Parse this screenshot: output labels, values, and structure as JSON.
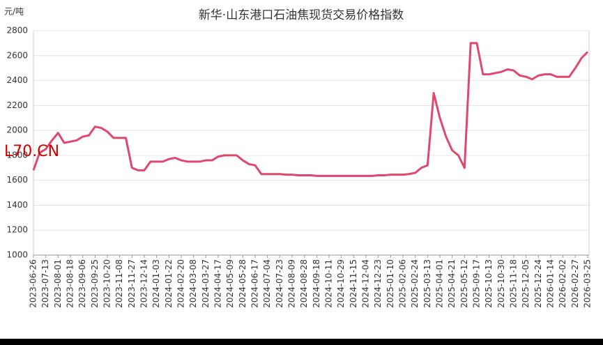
{
  "chart_data": {
    "type": "line",
    "title": "新华·山东港口石油焦现货交易价格指数",
    "y_unit": "元/吨",
    "watermark": "L70.CN",
    "categories": [
      "2023-06-26",
      null,
      "2023-07-13",
      null,
      "2023-08-01",
      null,
      "2023-08-18",
      null,
      "2023-09-06",
      null,
      "2023-09-25",
      null,
      "2023-10-20",
      null,
      "2023-11-08",
      null,
      "2023-11-27",
      null,
      "2023-12-14",
      null,
      "2024-01-03",
      null,
      "2024-01-22",
      null,
      "2024-02-20",
      null,
      "2024-03-08",
      null,
      "2024-03-27",
      null,
      "2024-04-17",
      null,
      "2024-05-09",
      null,
      "2024-05-28",
      null,
      "2024-06-17",
      null,
      "2024-07-04",
      null,
      "2024-07-23",
      null,
      "2024-08-09",
      null,
      "2024-08-28",
      null,
      "2024-09-18",
      null,
      "2024-10-11",
      null,
      "2024-10-29",
      null,
      "2024-11-15",
      null,
      "2024-12-04",
      null,
      "2024-12-23",
      null,
      "2025-01-10",
      null,
      "2025-02-06",
      null,
      "2025-02-24",
      null,
      "2025-03-13",
      null,
      "2025-04-01",
      null,
      "2025-04-21",
      null,
      "2025-05-12",
      null,
      "2025-09-17",
      null,
      "2025-10-13",
      null,
      "2025-10-30",
      null,
      "2025-11-18",
      null,
      "2025-12-05",
      null,
      "2025-12-24",
      null,
      "2026-01-14",
      null,
      "2026-02-02",
      null,
      "2026-02-27",
      null,
      "2026-03-25"
    ],
    "series": [
      {
        "color": "#e0476e",
        "values": [
          1680,
          1820,
          1850,
          1920,
          1980,
          1900,
          1910,
          1920,
          1950,
          1960,
          2030,
          2020,
          1990,
          1940,
          1940,
          1940,
          1700,
          1680,
          1680,
          1750,
          1750,
          1750,
          1770,
          1780,
          1760,
          1750,
          1750,
          1750,
          1760,
          1760,
          1790,
          1800,
          1800,
          1800,
          1760,
          1730,
          1720,
          1650,
          1650,
          1650,
          1650,
          1645,
          1645,
          1640,
          1640,
          1640,
          1635,
          1635,
          1635,
          1635,
          1635,
          1635,
          1635,
          1635,
          1635,
          1635,
          1640,
          1640,
          1645,
          1645,
          1645,
          1650,
          1660,
          1700,
          1720,
          2300,
          2100,
          1950,
          1840,
          1800,
          1700,
          2700,
          2700,
          2450,
          2450,
          2460,
          2470,
          2490,
          2480,
          2440,
          2430,
          2410,
          2440,
          2450,
          2450,
          2430,
          2430,
          2430,
          2500,
          2580,
          2630
        ]
      }
    ],
    "ylim": [
      1000,
      2800
    ],
    "yticks": [
      1000,
      1200,
      1400,
      1600,
      1800,
      2000,
      2200,
      2400,
      2600,
      2800
    ],
    "grid": true
  }
}
